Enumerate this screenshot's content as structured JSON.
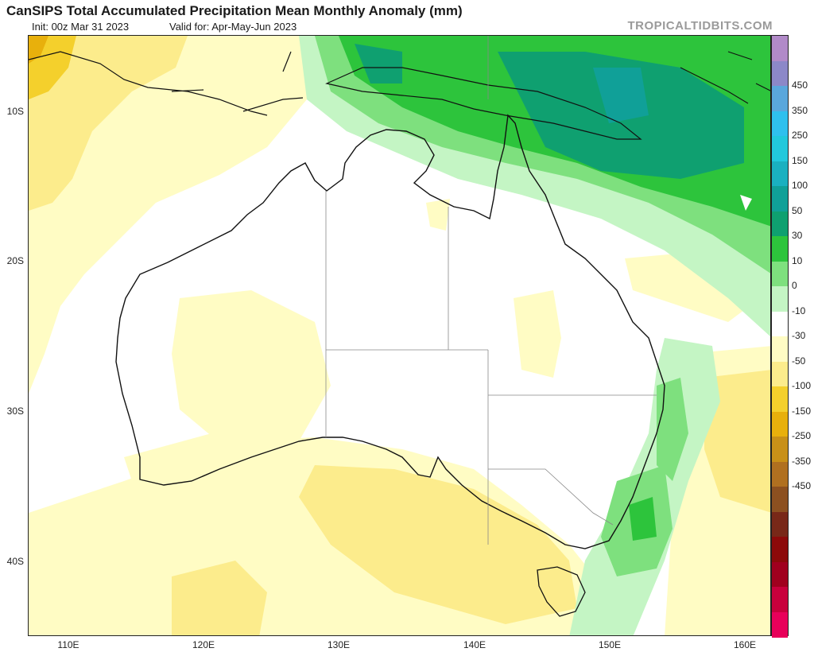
{
  "header": {
    "title": "CanSIPS Total Accumulated Precipitation Mean Monthly Anomaly (mm)",
    "init": "Init: 00z Mar 31 2023",
    "valid": "Valid for: Apr-May-Jun 2023",
    "brand": "TROPICALTIDBITS.COM"
  },
  "axes": {
    "lat_labels": [
      "10S",
      "20S",
      "30S",
      "40S"
    ],
    "lon_labels": [
      "110E",
      "120E",
      "130E",
      "140E",
      "150E",
      "160E"
    ]
  },
  "colorbar": {
    "labels": [
      "450",
      "350",
      "250",
      "150",
      "100",
      "50",
      "30",
      "10",
      "0",
      "-10",
      "-30",
      "-50",
      "-100",
      "-150",
      "-250",
      "-350",
      "-450"
    ],
    "colors": [
      "#b18ac8",
      "#8c88c8",
      "#5aa7dc",
      "#2fc0ee",
      "#22c8dc",
      "#1ab0c0",
      "#10a098",
      "#0fa070",
      "#2dc43c",
      "#7ee07e",
      "#c4f5c4",
      "#ffffff",
      "#fffcc4",
      "#fcec8c",
      "#f4d02c",
      "#e8b00c",
      "#c89018",
      "#b07020",
      "#8c5020",
      "#782818",
      "#8c0a0a",
      "#a0001e",
      "#c8003c",
      "#e8005a"
    ]
  }
}
